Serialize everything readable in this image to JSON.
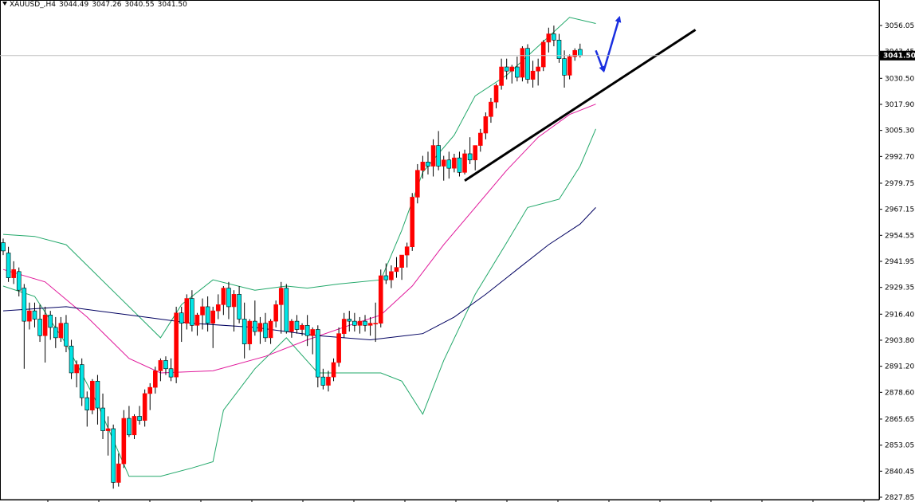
{
  "header": {
    "symbol": "XAUUSD_,H4",
    "open": "3044.49",
    "high": "3047.26",
    "low": "3040.55",
    "close": "3041.50"
  },
  "colors": {
    "background": "#ffffff",
    "bull_candle": "#ff0000",
    "bear_candle": "#00e5e5",
    "candle_outline": "#000000",
    "bollinger": "#22a86a",
    "ma_fast": "#e0179a",
    "ma_slow": "#000060",
    "trendline": "#000000",
    "arrow": "#1a2fe0",
    "price_line": "#c0c0c0",
    "price_label_bg": "#000000"
  },
  "chart_data": {
    "type": "candlestick",
    "symbol": "XAUUSD_,H4",
    "ylim": [
      2827.85,
      3060.0
    ],
    "y_ticks": [
      "3056.05",
      "3043.45",
      "3030.50",
      "3017.90",
      "3005.30",
      "2992.70",
      "2979.75",
      "2967.15",
      "2954.55",
      "2941.95",
      "2929.35",
      "2916.40",
      "2903.80",
      "2891.20",
      "2878.60",
      "2865.65",
      "2853.05",
      "2840.45",
      "2827.85"
    ],
    "current_price": "3041.50",
    "candles": [
      [
        2951,
        2953,
        2945,
        2947
      ],
      [
        2946,
        2949,
        2932,
        2934
      ],
      [
        2934,
        2942,
        2931,
        2938
      ],
      [
        2937,
        2939,
        2925,
        2928
      ],
      [
        2929,
        2931,
        2890,
        2913
      ],
      [
        2913,
        2922,
        2909,
        2918
      ],
      [
        2918,
        2922,
        2910,
        2914
      ],
      [
        2914,
        2921,
        2903,
        2906
      ],
      [
        2906,
        2920,
        2893,
        2916
      ],
      [
        2916,
        2918,
        2904,
        2910
      ],
      [
        2910,
        2915,
        2900,
        2905
      ],
      [
        2905,
        2915,
        2903,
        2912
      ],
      [
        2912,
        2916,
        2898,
        2901
      ],
      [
        2901,
        2904,
        2885,
        2888
      ],
      [
        2888,
        2894,
        2881,
        2892
      ],
      [
        2892,
        2895,
        2872,
        2876
      ],
      [
        2876,
        2879,
        2862,
        2870
      ],
      [
        2870,
        2885,
        2868,
        2884
      ],
      [
        2884,
        2887,
        2863,
        2871
      ],
      [
        2871,
        2878,
        2856,
        2860
      ],
      [
        2860,
        2867,
        2848,
        2861
      ],
      [
        2861,
        2863,
        2832,
        2835
      ],
      [
        2835,
        2849,
        2833,
        2844
      ],
      [
        2844,
        2870,
        2842,
        2866
      ],
      [
        2866,
        2872,
        2857,
        2858
      ],
      [
        2858,
        2868,
        2856,
        2867
      ],
      [
        2867,
        2872,
        2863,
        2865
      ],
      [
        2865,
        2880,
        2862,
        2878
      ],
      [
        2878,
        2883,
        2870,
        2881
      ],
      [
        2881,
        2891,
        2878,
        2889
      ],
      [
        2889,
        2895,
        2884,
        2894
      ],
      [
        2894,
        2896,
        2887,
        2890
      ],
      [
        2890,
        2895,
        2884,
        2886
      ],
      [
        2886,
        2920,
        2883,
        2917
      ],
      [
        2917,
        2920,
        2903,
        2912
      ],
      [
        2912,
        2926,
        2909,
        2924
      ],
      [
        2924,
        2928,
        2908,
        2911
      ],
      [
        2911,
        2917,
        2906,
        2916
      ],
      [
        2916,
        2924,
        2909,
        2920
      ],
      [
        2920,
        2925,
        2908,
        2912
      ],
      [
        2912,
        2920,
        2900,
        2918
      ],
      [
        2918,
        2926,
        2914,
        2921
      ],
      [
        2921,
        2930,
        2916,
        2929
      ],
      [
        2929,
        2932,
        2914,
        2920
      ],
      [
        2920,
        2928,
        2908,
        2926
      ],
      [
        2926,
        2930,
        2912,
        2914
      ],
      [
        2914,
        2922,
        2895,
        2902
      ],
      [
        2902,
        2914,
        2899,
        2913
      ],
      [
        2913,
        2923,
        2906,
        2908
      ],
      [
        2908,
        2915,
        2902,
        2912
      ],
      [
        2912,
        2917,
        2903,
        2905
      ],
      [
        2905,
        2914,
        2902,
        2913
      ],
      [
        2913,
        2923,
        2910,
        2921
      ],
      [
        2921,
        2932,
        2907,
        2929
      ],
      [
        2929,
        2931,
        2907,
        2908
      ],
      [
        2908,
        2914,
        2905,
        2913
      ],
      [
        2913,
        2916,
        2907,
        2909
      ],
      [
        2909,
        2912,
        2906,
        2911
      ],
      [
        2911,
        2916,
        2901,
        2906
      ],
      [
        2906,
        2910,
        2897,
        2909
      ],
      [
        2909,
        2911,
        2881,
        2886
      ],
      [
        2886,
        2890,
        2880,
        2882
      ],
      [
        2882,
        2889,
        2879,
        2886
      ],
      [
        2886,
        2895,
        2884,
        2893
      ],
      [
        2893,
        2910,
        2891,
        2907
      ],
      [
        2907,
        2917,
        2905,
        2914
      ],
      [
        2914,
        2918,
        2908,
        2913
      ],
      [
        2913,
        2917,
        2908,
        2911
      ],
      [
        2911,
        2915,
        2907,
        2913
      ],
      [
        2913,
        2916,
        2908,
        2911
      ],
      [
        2911,
        2915,
        2906,
        2912
      ],
      [
        2912,
        2922,
        2903,
        2912
      ],
      [
        2912,
        2938,
        2910,
        2935
      ],
      [
        2935,
        2941,
        2931,
        2933
      ],
      [
        2933,
        2940,
        2929,
        2937
      ],
      [
        2937,
        2944,
        2934,
        2939
      ],
      [
        2939,
        2945,
        2933,
        2945
      ],
      [
        2945,
        2951,
        2939,
        2949
      ],
      [
        2949,
        2975,
        2947,
        2973
      ],
      [
        2973,
        2989,
        2970,
        2986
      ],
      [
        2986,
        2993,
        2982,
        2990
      ],
      [
        2990,
        2995,
        2984,
        2988
      ],
      [
        2988,
        3001,
        2983,
        2998
      ],
      [
        2998,
        3005,
        2986,
        2988
      ],
      [
        2988,
        2993,
        2981,
        2991
      ],
      [
        2991,
        2995,
        2982,
        2987
      ],
      [
        2987,
        2994,
        2985,
        2992
      ],
      [
        2992,
        2995,
        2983,
        2985
      ],
      [
        2985,
        2996,
        2984,
        2994
      ],
      [
        2994,
        3002,
        2989,
        2991
      ],
      [
        2991,
        2998,
        2986,
        2998
      ],
      [
        2998,
        3006,
        2995,
        3004
      ],
      [
        3004,
        3014,
        3001,
        3012
      ],
      [
        3012,
        3021,
        3009,
        3019
      ],
      [
        3019,
        3028,
        3016,
        3027
      ],
      [
        3027,
        3040,
        3025,
        3036
      ],
      [
        3036,
        3040,
        3030,
        3034
      ],
      [
        3034,
        3037,
        3028,
        3036
      ],
      [
        3036,
        3041,
        3029,
        3031
      ],
      [
        3031,
        3046,
        3029,
        3045
      ],
      [
        3045,
        3047,
        3028,
        3030
      ],
      [
        3030,
        3039,
        3026,
        3034
      ],
      [
        3034,
        3040,
        3027,
        3036
      ],
      [
        3036,
        3049,
        3034,
        3048
      ],
      [
        3048,
        3055,
        3043,
        3052
      ],
      [
        3052,
        3056,
        3046,
        3049
      ],
      [
        3049,
        3052,
        3038,
        3040
      ],
      [
        3040,
        3044,
        3026,
        3032
      ],
      [
        3032,
        3042,
        3030,
        3041
      ],
      [
        3041,
        3045,
        3039,
        3044
      ],
      [
        3044.49,
        3047.26,
        3040.55,
        3041.5
      ]
    ],
    "ma_slow": [
      [
        0,
        2918
      ],
      [
        12,
        2920
      ],
      [
        24,
        2916
      ],
      [
        36,
        2912
      ],
      [
        48,
        2910
      ],
      [
        60,
        2906
      ],
      [
        70,
        2904
      ],
      [
        80,
        2907
      ],
      [
        86,
        2915
      ],
      [
        92,
        2926
      ],
      [
        98,
        2938
      ],
      [
        104,
        2950
      ],
      [
        110,
        2960
      ],
      [
        113,
        2968
      ]
    ],
    "ma_fast": [
      [
        0,
        2938
      ],
      [
        8,
        2932
      ],
      [
        16,
        2915
      ],
      [
        24,
        2895
      ],
      [
        30,
        2888
      ],
      [
        40,
        2889
      ],
      [
        50,
        2896
      ],
      [
        58,
        2904
      ],
      [
        66,
        2911
      ],
      [
        72,
        2916
      ],
      [
        78,
        2930
      ],
      [
        84,
        2950
      ],
      [
        90,
        2968
      ],
      [
        96,
        2986
      ],
      [
        102,
        3002
      ],
      [
        108,
        3013
      ],
      [
        113,
        3018
      ]
    ],
    "boll_upper": [
      [
        0,
        2955
      ],
      [
        6,
        2954
      ],
      [
        12,
        2950
      ],
      [
        18,
        2935
      ],
      [
        24,
        2920
      ],
      [
        30,
        2905
      ],
      [
        34,
        2921
      ],
      [
        40,
        2933
      ],
      [
        48,
        2928
      ],
      [
        54,
        2930
      ],
      [
        58,
        2929
      ],
      [
        64,
        2931
      ],
      [
        72,
        2933
      ],
      [
        76,
        2957
      ],
      [
        80,
        2985
      ],
      [
        86,
        3003
      ],
      [
        90,
        3022
      ],
      [
        96,
        3032
      ],
      [
        102,
        3046
      ],
      [
        108,
        3060
      ],
      [
        113,
        3057
      ]
    ],
    "boll_lower": [
      [
        0,
        2930
      ],
      [
        6,
        2925
      ],
      [
        12,
        2902
      ],
      [
        18,
        2873
      ],
      [
        24,
        2838
      ],
      [
        30,
        2838
      ],
      [
        36,
        2842
      ],
      [
        40,
        2845
      ],
      [
        42,
        2870
      ],
      [
        48,
        2890
      ],
      [
        54,
        2905
      ],
      [
        60,
        2888
      ],
      [
        66,
        2888
      ],
      [
        72,
        2888
      ],
      [
        76,
        2884
      ],
      [
        80,
        2868
      ],
      [
        84,
        2894
      ],
      [
        90,
        2926
      ],
      [
        96,
        2951
      ],
      [
        100,
        2968
      ],
      [
        106,
        2972
      ],
      [
        110,
        2988
      ],
      [
        113,
        3006
      ]
    ],
    "trendline": [
      [
        88,
        2981
      ],
      [
        132,
        3054
      ]
    ],
    "arrows": [
      {
        "from": [
          113,
          3044
        ],
        "to": [
          114.5,
          3034
        ]
      },
      {
        "from": [
          114.5,
          3034
        ],
        "to": [
          117.5,
          3060
        ]
      }
    ],
    "grid": false
  }
}
